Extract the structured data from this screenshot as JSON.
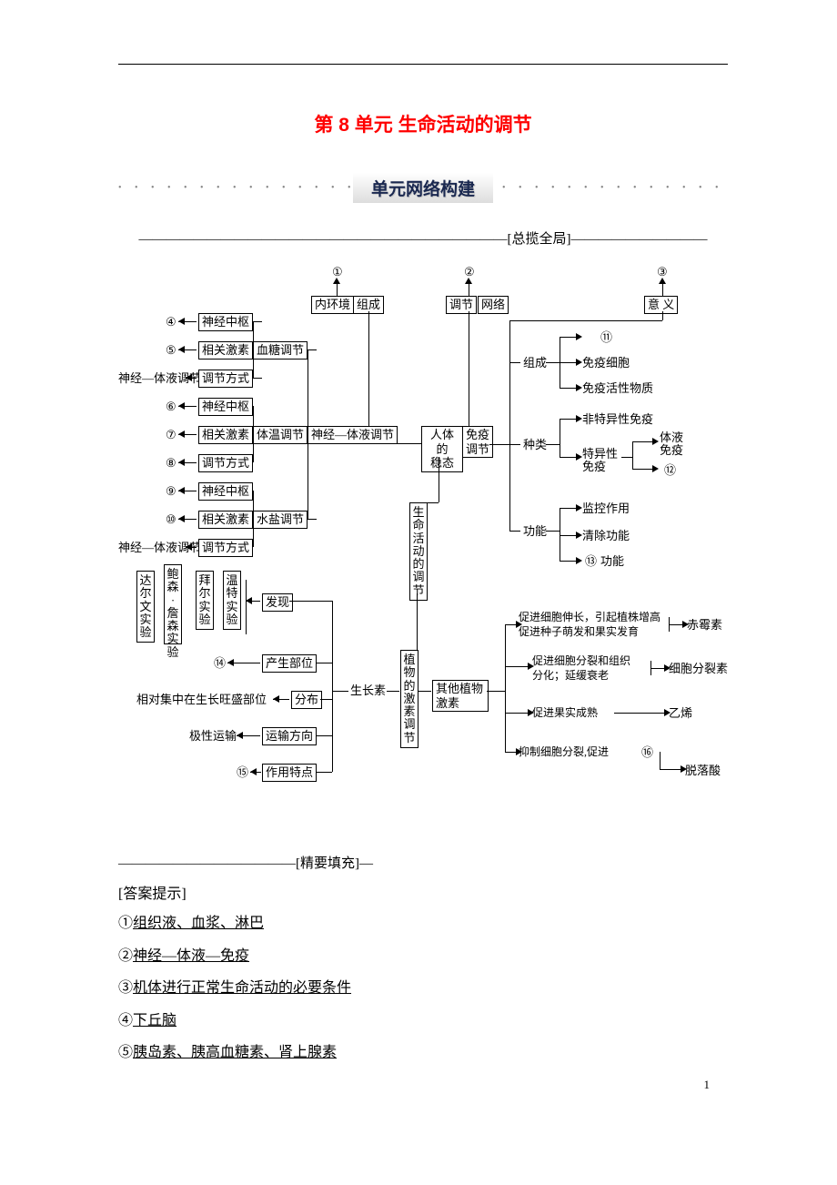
{
  "title": "第 8 单元  生命活动的调节",
  "section_header": "单元网络构建",
  "overview_label": "———————————————————————————[总揽全局]——————————",
  "fill_label": "—————————————[精要填充]—",
  "answers_heading": "[答案提示]",
  "page_number": "1",
  "dots": "• • • • • • • • • • • • • • • • • •",
  "diagram": {
    "circled": {
      "1": "①",
      "2": "②",
      "3": "③",
      "4": "④",
      "5": "⑤",
      "6": "⑥",
      "7": "⑦",
      "8": "⑧",
      "9": "⑨",
      "10": "⑩",
      "11": "⑪",
      "12": "⑫",
      "13": "⑬",
      "14": "⑭",
      "15": "⑮",
      "16": "⑯"
    },
    "top": {
      "inner_env": "内环境",
      "compose": "组成",
      "regulate": "调节",
      "network": "网络",
      "meaning": "意 义"
    },
    "left": {
      "nerve_center": "神经中枢",
      "related_hormone": "相关激素",
      "blood_sugar": "血糖调节",
      "reg_mode": "调节方式",
      "nerve_humoral": "神经—体液调节",
      "body_temp": "体温调节",
      "water_salt": "水盐调节",
      "nerve_humoral_reg": "神经—体液调节"
    },
    "center": {
      "human_homeo": "人体的\n稳态",
      "immune_reg": "免疫\n调节",
      "life_reg": "生命活动的调节",
      "plant_hormone": "植物的激素调节"
    },
    "right_immune": {
      "compose": "组成",
      "immune_cell": "免疫细胞",
      "immune_active": "免疫活性物质",
      "kind": "种类",
      "nonspecific": "非特异性免疫",
      "specific": "特异性\n免疫",
      "humoral": "体液\n免疫",
      "function": "功能",
      "monitor": "监控作用",
      "clear": "清除功能",
      "func_suffix": " 功能"
    },
    "plant_left": {
      "darwin": "达尔文实验",
      "bow森": "鲍森·詹森实验",
      "bai": "拜尔实验",
      "wente": "温特实验",
      "discover": "发现",
      "produce": "产生部位",
      "auxin": "生长素",
      "distribute_left": "相对集中在生长旺盛部位",
      "distribute": "分布",
      "polar": "极性运输",
      "transport": "运输方向",
      "feature": "作用特点"
    },
    "plant_right": {
      "other_plant": "其他植物\n激素",
      "gib1": "促进细胞伸长，引起植株增高",
      "gib2": "促进种子萌发和果实发育",
      "gib_name": "赤霉素",
      "cyto1": "促进细胞分裂和组织",
      "cyto2": "分化；延缓衰老",
      "cyto_name": "细胞分裂素",
      "eth": "促进果实成熟",
      "eth_name": "乙烯",
      "aba": "抑制细胞分裂,促进",
      "aba_name": "脱落酸"
    }
  },
  "answers": [
    {
      "num": "①",
      "text": "组织液、血浆、淋巴"
    },
    {
      "num": "②",
      "text": "神经—体液—免疫"
    },
    {
      "num": "③",
      "text": "机体进行正常生命活动的必要条件"
    },
    {
      "num": "④",
      "text": "下丘脑"
    },
    {
      "num": "⑤",
      "text": "胰岛素、胰高血糖素、肾上腺素"
    }
  ]
}
